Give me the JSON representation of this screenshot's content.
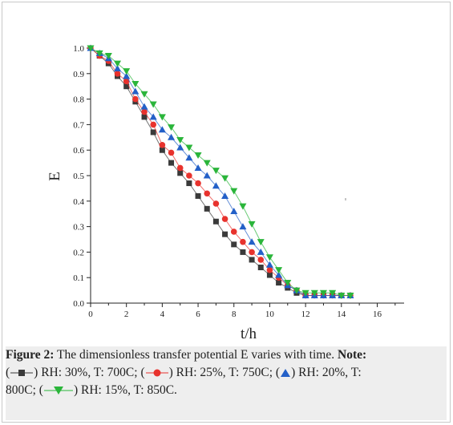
{
  "chart_data": {
    "type": "line",
    "xlabel": "t/h",
    "ylabel": "E",
    "xlim": [
      0,
      17.5
    ],
    "ylim": [
      0,
      1.0
    ],
    "xticks": [
      "0",
      "2",
      "4",
      "6",
      "8",
      "10",
      "12",
      "14",
      "16"
    ],
    "yticks": [
      "0.0",
      "0.1",
      "0.2",
      "0.3",
      "0.4",
      "0.5",
      "0.6",
      "0.7",
      "0.8",
      "0.9",
      "1.0"
    ],
    "grid": false,
    "series": [
      {
        "name": "RH: 30%, T: 700C",
        "marker": "square",
        "color": "#3a3a3a",
        "x": [
          0,
          0.5,
          1.0,
          1.5,
          2.0,
          2.5,
          3.0,
          3.5,
          4.0,
          4.5,
          5.0,
          5.5,
          6.0,
          6.5,
          7.0,
          7.5,
          8.0,
          8.5,
          9.0,
          9.5,
          10.0,
          10.5,
          11.0,
          11.5,
          12.0,
          12.5,
          13.0,
          13.5,
          14.0,
          14.5
        ],
        "y": [
          1.0,
          0.97,
          0.94,
          0.89,
          0.85,
          0.79,
          0.73,
          0.67,
          0.6,
          0.55,
          0.51,
          0.47,
          0.42,
          0.37,
          0.32,
          0.27,
          0.23,
          0.2,
          0.17,
          0.14,
          0.11,
          0.08,
          0.06,
          0.04,
          0.03,
          0.03,
          0.03,
          0.03,
          0.03,
          0.03
        ]
      },
      {
        "name": "RH: 25%, T: 750C",
        "marker": "circle",
        "color": "#e8322d",
        "x": [
          0,
          0.5,
          1.0,
          1.5,
          2.0,
          2.5,
          3.0,
          3.5,
          4.0,
          4.5,
          5.0,
          5.5,
          6.0,
          6.5,
          7.0,
          7.5,
          8.0,
          8.5,
          9.0,
          9.5,
          10.0,
          10.5,
          11.0,
          11.5,
          12.0,
          12.5,
          13.0,
          13.5,
          14.0,
          14.5
        ],
        "y": [
          1.0,
          0.97,
          0.95,
          0.9,
          0.87,
          0.8,
          0.75,
          0.7,
          0.62,
          0.59,
          0.53,
          0.5,
          0.47,
          0.43,
          0.39,
          0.33,
          0.28,
          0.24,
          0.2,
          0.17,
          0.13,
          0.1,
          0.07,
          0.05,
          0.03,
          0.03,
          0.03,
          0.03,
          0.03,
          0.03
        ]
      },
      {
        "name": "RH: 20%, T: 800C",
        "marker": "triangle-up",
        "color": "#2360c8",
        "x": [
          0,
          0.5,
          1.0,
          1.5,
          2.0,
          2.5,
          3.0,
          3.5,
          4.0,
          4.5,
          5.0,
          5.5,
          6.0,
          6.5,
          7.0,
          7.5,
          8.0,
          8.5,
          9.0,
          9.5,
          10.0,
          10.5,
          11.0,
          11.5,
          12.0,
          12.5,
          13.0,
          13.5,
          14.0,
          14.5
        ],
        "y": [
          1.0,
          0.98,
          0.96,
          0.92,
          0.89,
          0.83,
          0.77,
          0.73,
          0.68,
          0.65,
          0.61,
          0.57,
          0.53,
          0.5,
          0.46,
          0.42,
          0.36,
          0.3,
          0.24,
          0.2,
          0.15,
          0.11,
          0.07,
          0.05,
          0.03,
          0.03,
          0.03,
          0.03,
          0.03,
          0.03
        ]
      },
      {
        "name": "RH: 15%, T: 850C",
        "marker": "triangle-down",
        "color": "#2ab53a",
        "x": [
          0,
          0.5,
          1.0,
          1.5,
          2.0,
          2.5,
          3.0,
          3.5,
          4.0,
          4.5,
          5.0,
          5.5,
          6.0,
          6.5,
          7.0,
          7.5,
          8.0,
          8.5,
          9.0,
          9.5,
          10.0,
          10.5,
          11.0,
          11.5,
          12.0,
          12.5,
          13.0,
          13.5,
          14.0,
          14.5
        ],
        "y": [
          1.0,
          0.98,
          0.97,
          0.94,
          0.91,
          0.86,
          0.82,
          0.78,
          0.73,
          0.69,
          0.64,
          0.61,
          0.58,
          0.55,
          0.52,
          0.49,
          0.44,
          0.38,
          0.31,
          0.24,
          0.18,
          0.13,
          0.08,
          0.05,
          0.04,
          0.04,
          0.04,
          0.04,
          0.03,
          0.03
        ]
      }
    ]
  },
  "caption": {
    "figure_label": "Figure 2:",
    "text": "The dimensionless transfer potential E varies with time.",
    "note_label": "Note:",
    "items": [
      {
        "prefix": "(",
        "suffix": ") RH: 30%, T: 700C;"
      },
      {
        "prefix": "(",
        "suffix": ") RH: 25%, T: 750C;"
      },
      {
        "prefix": "(",
        "suffix": ") RH: 20%, T:"
      },
      {
        "wrap": "800C;"
      },
      {
        "prefix": "(",
        "suffix": ") RH: 15%, T: 850C."
      }
    ]
  }
}
